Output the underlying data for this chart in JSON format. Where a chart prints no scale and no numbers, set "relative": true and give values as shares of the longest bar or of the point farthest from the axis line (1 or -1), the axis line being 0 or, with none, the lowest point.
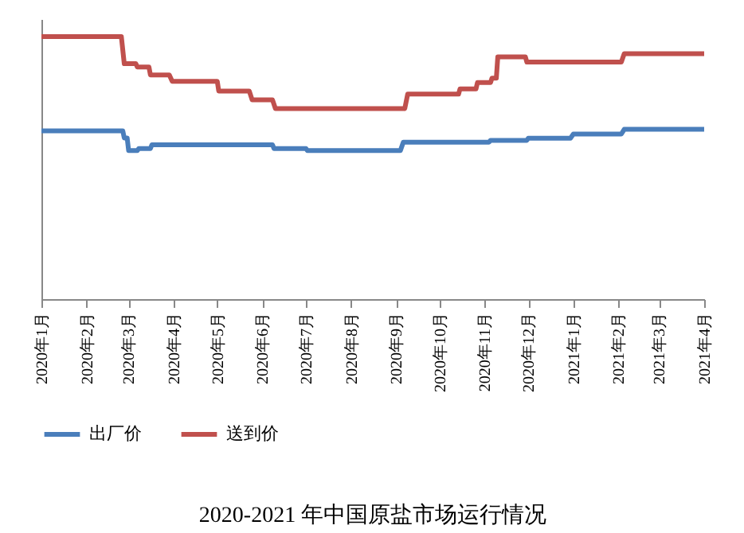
{
  "chart_data": {
    "type": "line",
    "title": "2020-2021 年中国原盐市场运行情况",
    "relative": true,
    "legend": "bottom",
    "grid": false,
    "marker": "none",
    "line_style": "solid",
    "xlim": [
      "2020-01-01",
      "2021-04-01"
    ],
    "xticks": [
      {
        "value": "2020-01-01",
        "label": "2020年1月"
      },
      {
        "value": "2020-02-01",
        "label": "2020年2月"
      },
      {
        "value": "2020-03-01",
        "label": "2020年3月"
      },
      {
        "value": "2020-04-01",
        "label": "2020年4月"
      },
      {
        "value": "2020-05-01",
        "label": "2020年5月"
      },
      {
        "value": "2020-06-01",
        "label": "2020年6月"
      },
      {
        "value": "2020-07-01",
        "label": "2020年7月"
      },
      {
        "value": "2020-08-01",
        "label": "2020年8月"
      },
      {
        "value": "2020-09-01",
        "label": "2020年9月"
      },
      {
        "value": "2020-10-01",
        "label": "2020年10月"
      },
      {
        "value": "2020-11-01",
        "label": "2020年11月"
      },
      {
        "value": "2020-12-01",
        "label": "2020年12月"
      },
      {
        "value": "2021-01-01",
        "label": "2021年1月"
      },
      {
        "value": "2021-02-01",
        "label": "2021年2月"
      },
      {
        "value": "2021-03-01",
        "label": "2021年3月"
      },
      {
        "value": "2021-04-01",
        "label": "2021年4月"
      }
    ],
    "series": [
      {
        "name": "出厂价",
        "color": "#4a7ebb",
        "x": [
          "2020-01-01",
          "2020-02-26",
          "2020-02-27",
          "2020-02-29",
          "2020-03-01",
          "2020-03-07",
          "2020-03-08",
          "2020-03-16",
          "2020-03-17",
          "2020-06-08",
          "2020-06-09",
          "2020-07-01",
          "2020-07-02",
          "2020-09-04",
          "2020-09-06",
          "2020-11-04",
          "2020-11-05",
          "2020-11-30",
          "2020-12-01",
          "2020-12-30",
          "2021-01-01",
          "2021-02-03",
          "2021-02-05",
          "2021-04-01"
        ],
        "values": [
          0.641,
          0.641,
          0.614,
          0.614,
          0.566,
          0.566,
          0.574,
          0.574,
          0.588,
          0.588,
          0.574,
          0.574,
          0.566,
          0.566,
          0.598,
          0.598,
          0.605,
          0.605,
          0.613,
          0.613,
          0.629,
          0.629,
          0.647,
          0.647
        ]
      },
      {
        "name": "送到价",
        "color": "#c0504d",
        "x": [
          "2020-01-01",
          "2020-02-25",
          "2020-02-27",
          "2020-03-06",
          "2020-03-07",
          "2020-03-15",
          "2020-03-16",
          "2020-03-29",
          "2020-03-31",
          "2020-05-01",
          "2020-05-02",
          "2020-05-23",
          "2020-05-25",
          "2020-06-08",
          "2020-06-10",
          "2020-09-07",
          "2020-09-09",
          "2020-10-14",
          "2020-10-15",
          "2020-10-26",
          "2020-10-27",
          "2020-11-05",
          "2020-11-06",
          "2020-11-09",
          "2020-11-10",
          "2020-11-29",
          "2020-11-30",
          "2021-02-03",
          "2021-02-05",
          "2021-04-01"
        ],
        "values": [
          1,
          1,
          0.897,
          0.897,
          0.884,
          0.884,
          0.854,
          0.854,
          0.83,
          0.83,
          0.793,
          0.793,
          0.759,
          0.759,
          0.726,
          0.726,
          0.781,
          0.781,
          0.801,
          0.801,
          0.825,
          0.825,
          0.842,
          0.842,
          0.923,
          0.923,
          0.903,
          0.903,
          0.935,
          0.935
        ]
      }
    ]
  }
}
